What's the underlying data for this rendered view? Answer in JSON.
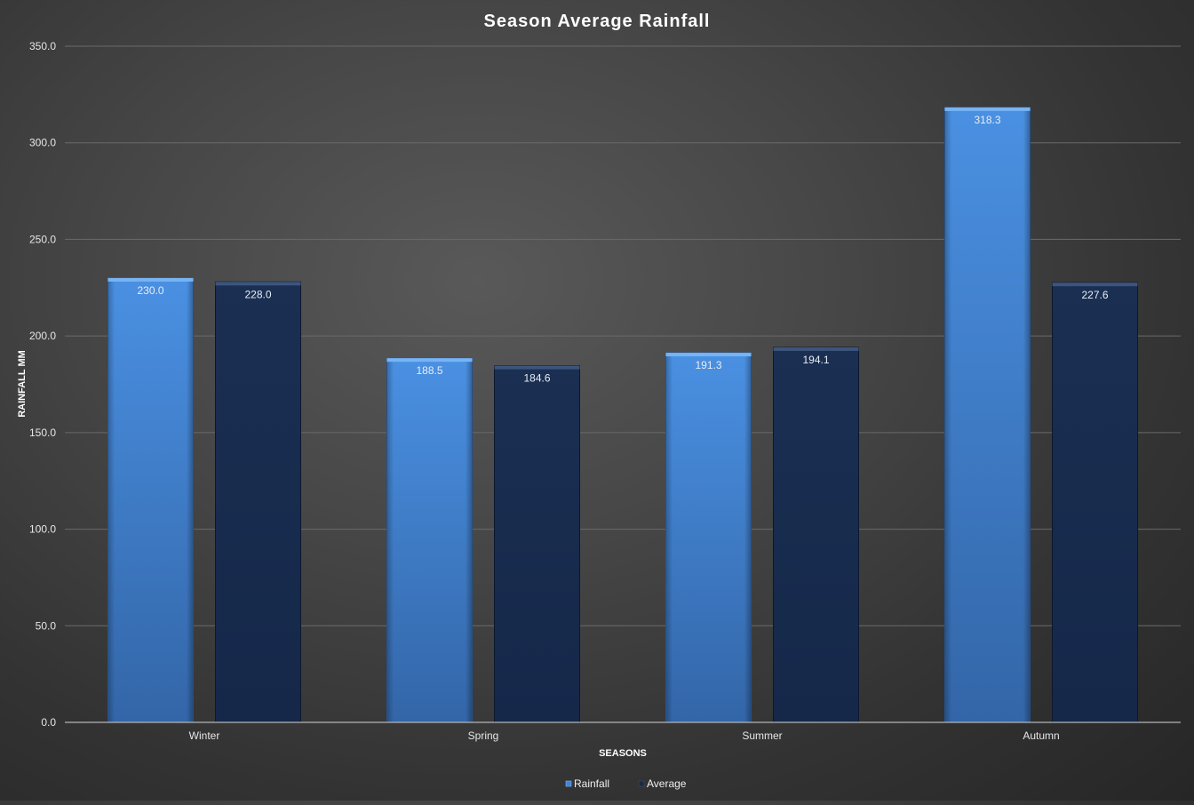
{
  "chart_data": {
    "type": "bar",
    "title": "Season Average Rainfall",
    "xlabel": "SEASONS",
    "ylabel": "RAINFALL MM",
    "categories": [
      "Winter",
      "Spring",
      "Summer",
      "Autumn"
    ],
    "series": [
      {
        "name": "Rainfall",
        "values": [
          230.0,
          188.5,
          191.3,
          318.3
        ],
        "color": "#3f84d8"
      },
      {
        "name": "Average",
        "values": [
          228.0,
          184.6,
          194.1,
          227.6
        ],
        "color": "#172a48"
      }
    ],
    "ylim": [
      0,
      350
    ],
    "ytick_step": 50,
    "ytick_format": "0.0",
    "data_labels": true,
    "grid": true,
    "legend_position": "bottom"
  }
}
